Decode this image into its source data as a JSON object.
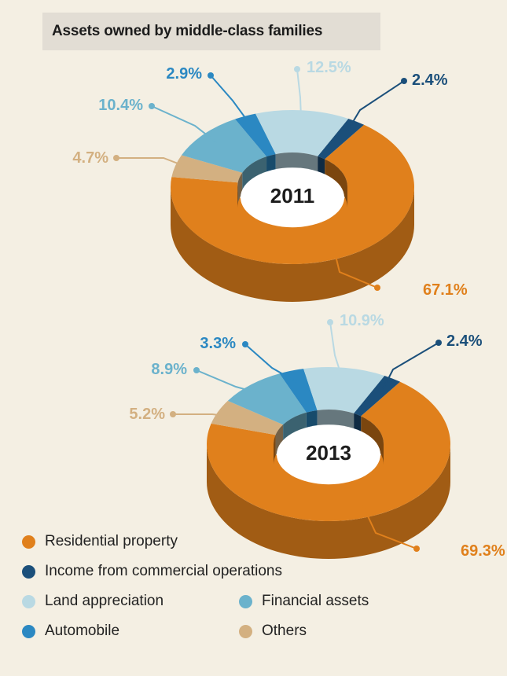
{
  "chart_data": [
    {
      "type": "pie",
      "title": "Assets owned by middle-class families",
      "year_label": "2011",
      "slices": [
        {
          "label": "Residential property",
          "value": 67.1,
          "display": "67.1%"
        },
        {
          "label": "Others",
          "value": 4.7,
          "display": "4.7%"
        },
        {
          "label": "Financial assets",
          "value": 10.4,
          "display": "10.4%"
        },
        {
          "label": "Automobile",
          "value": 2.9,
          "display": "2.9%"
        },
        {
          "label": "Land appreciation",
          "value": 12.5,
          "display": "12.5%"
        },
        {
          "label": "Income from commercial operations",
          "value": 2.4,
          "display": "2.4%"
        }
      ]
    },
    {
      "type": "pie",
      "title": "Assets owned by middle-class families",
      "year_label": "2013",
      "slices": [
        {
          "label": "Residential property",
          "value": 69.3,
          "display": "69.3%"
        },
        {
          "label": "Others",
          "value": 5.2,
          "display": "5.2%"
        },
        {
          "label": "Financial assets",
          "value": 8.9,
          "display": "8.9%"
        },
        {
          "label": "Automobile",
          "value": 3.3,
          "display": "3.3%"
        },
        {
          "label": "Land appreciation",
          "value": 10.9,
          "display": "10.9%"
        },
        {
          "label": "Income from commercial operations",
          "value": 2.4,
          "display": "2.4%"
        }
      ]
    }
  ],
  "title": "Assets owned by middle-class families",
  "legend": [
    {
      "label": "Residential property",
      "color": "#e0801c"
    },
    {
      "label": "Income from commercial operations",
      "color": "#1b4f7a"
    },
    {
      "label": "Land appreciation",
      "color": "#b9d9e3"
    },
    {
      "label": "Financial assets",
      "color": "#6bb2cc"
    },
    {
      "label": "Automobile",
      "color": "#2b88c2"
    },
    {
      "label": "Others",
      "color": "#d3b081"
    }
  ]
}
